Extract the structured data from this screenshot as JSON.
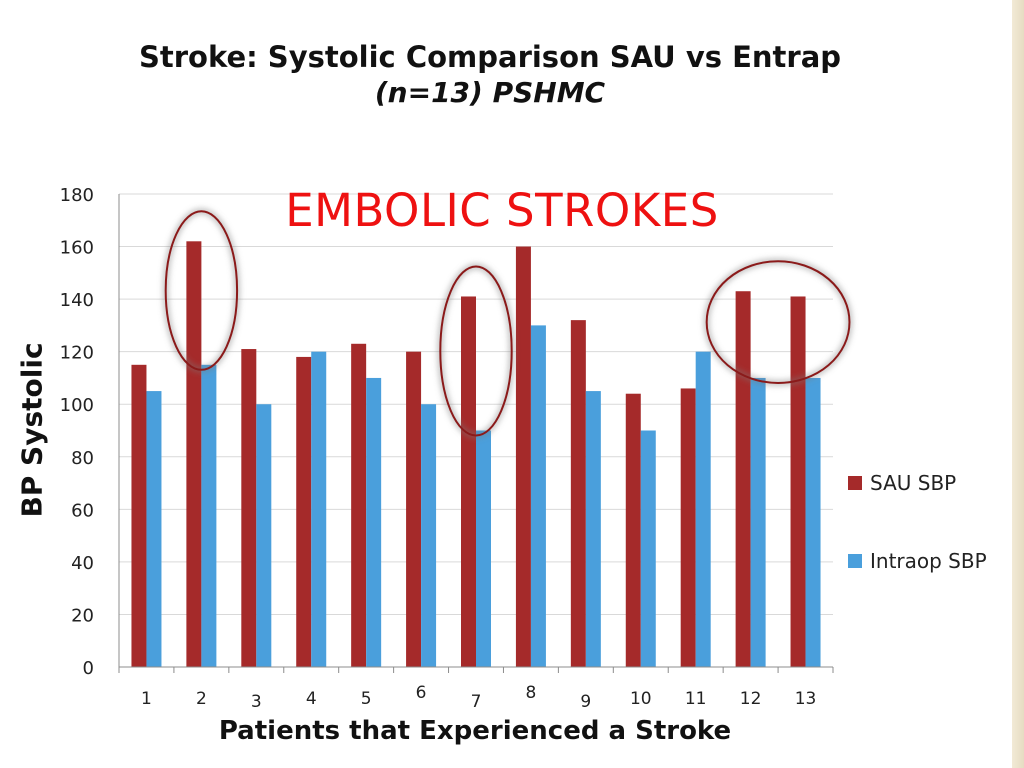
{
  "slide": {
    "title": "Stroke:  Systolic Comparison SAU vs Entrap",
    "subtitle": "(n=13) PSHMC",
    "annotation": "EMBOLIC STROKES"
  },
  "colors": {
    "sau": "#a52a2a",
    "intraop": "#4a9fdc",
    "annotation": "#ee1111",
    "circle": "#8b1a1a"
  },
  "chart_data": {
    "type": "bar",
    "title": "",
    "xlabel": "Patients that Experienced a Stroke",
    "ylabel": "BP Systolic",
    "ylim": [
      0,
      180
    ],
    "yticks": [
      0,
      20,
      40,
      60,
      80,
      100,
      120,
      140,
      160,
      180
    ],
    "grid": true,
    "legend_position": "right",
    "categories": [
      "1",
      "2",
      "3",
      "4",
      "5",
      "6",
      "7",
      "8",
      "9",
      "10",
      "11",
      "12",
      "13"
    ],
    "series": [
      {
        "name": "SAU SBP",
        "values": [
          115,
          162,
          121,
          118,
          123,
          120,
          141,
          160,
          132,
          104,
          106,
          143,
          141
        ]
      },
      {
        "name": "Intraop SBP",
        "values": [
          105,
          115,
          100,
          120,
          110,
          100,
          90,
          130,
          105,
          90,
          120,
          110,
          110
        ]
      }
    ],
    "highlighted_categories": [
      [
        "2"
      ],
      [
        "7"
      ],
      [
        "12",
        "13"
      ]
    ]
  }
}
